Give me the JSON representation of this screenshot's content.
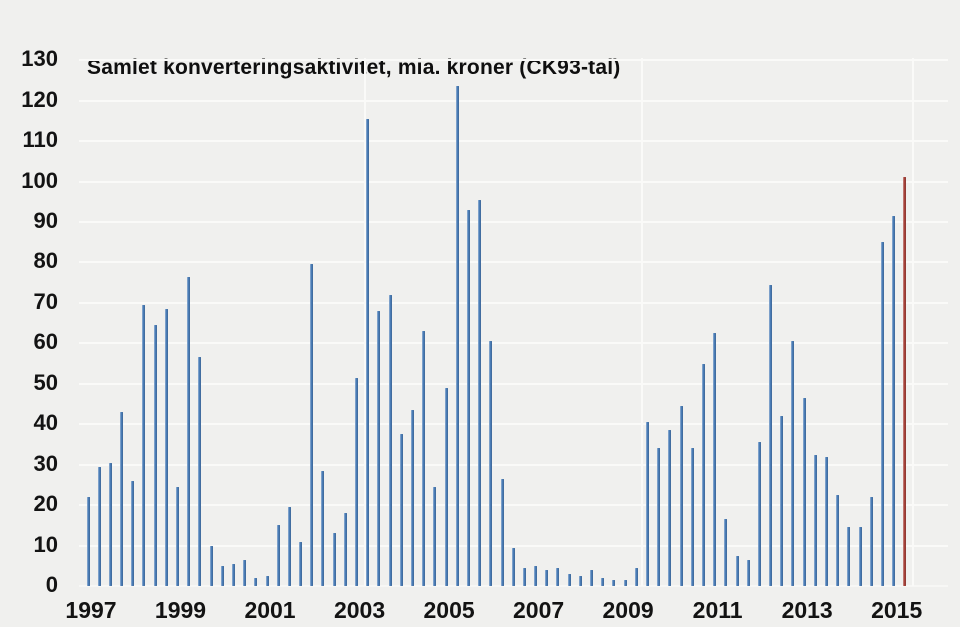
{
  "chart_data": {
    "type": "bar",
    "title": "Samlet konverteringsaktivitet, mia. kroner (CK93-tal)",
    "unit": "mia. kroner",
    "frequency": "quarterly",
    "ylim": [
      0,
      130
    ],
    "ytick_step": 10,
    "yticks": [
      0,
      10,
      20,
      30,
      40,
      50,
      60,
      70,
      80,
      90,
      100,
      110,
      120,
      130
    ],
    "xtick_labels": [
      "1997",
      "1999",
      "2001",
      "2003",
      "2005",
      "2007",
      "2009",
      "2011",
      "2013",
      "2015"
    ],
    "grid": "horizontal-white",
    "legend": "none",
    "bar_color": "#4a7cb5",
    "highlight_color": "#a6423a",
    "highlight_last_bar": true,
    "years": [
      {
        "year": "1997",
        "values": [
          22,
          29.5,
          30.5,
          43
        ]
      },
      {
        "year": "1998",
        "values": [
          26,
          69.5,
          64.5,
          68.5
        ]
      },
      {
        "year": "1999",
        "values": [
          24.5,
          76.5,
          56.5,
          10
        ]
      },
      {
        "year": "2000",
        "values": [
          5,
          5.5,
          6.5,
          2
        ]
      },
      {
        "year": "2001",
        "values": [
          2.5,
          15,
          19.5,
          11
        ]
      },
      {
        "year": "2002",
        "values": [
          79.5,
          28.5,
          13,
          18
        ]
      },
      {
        "year": "2003",
        "values": [
          51.5,
          115.5,
          68,
          72
        ]
      },
      {
        "year": "2004",
        "values": [
          37.5,
          43.5,
          63,
          24.5
        ]
      },
      {
        "year": "2005",
        "values": [
          49,
          123.5,
          93,
          95.5
        ]
      },
      {
        "year": "2006",
        "values": [
          60.5,
          26.5,
          9.5,
          4.5
        ]
      },
      {
        "year": "2007",
        "values": [
          5,
          4,
          4.5,
          3
        ]
      },
      {
        "year": "2008",
        "values": [
          2.5,
          4,
          2,
          1.5
        ]
      },
      {
        "year": "2009",
        "values": [
          1.5,
          4.5,
          40.5,
          34
        ]
      },
      {
        "year": "2010",
        "values": [
          38.5,
          44.5,
          34,
          55
        ]
      },
      {
        "year": "2011",
        "values": [
          62.5,
          16.5,
          7.5,
          6.5
        ]
      },
      {
        "year": "2012",
        "values": [
          35.5,
          74.5,
          42,
          60.5
        ]
      },
      {
        "year": "2013",
        "values": [
          46.5,
          32.5,
          32,
          22.5
        ]
      },
      {
        "year": "2014",
        "values": [
          14.5,
          14.5,
          22,
          85
        ]
      },
      {
        "year": "2015",
        "values": [
          91.5,
          101
        ]
      }
    ],
    "colors": {
      "background": "#f0f0ee",
      "gridline": "#fafaf8",
      "text": "#131313"
    }
  }
}
